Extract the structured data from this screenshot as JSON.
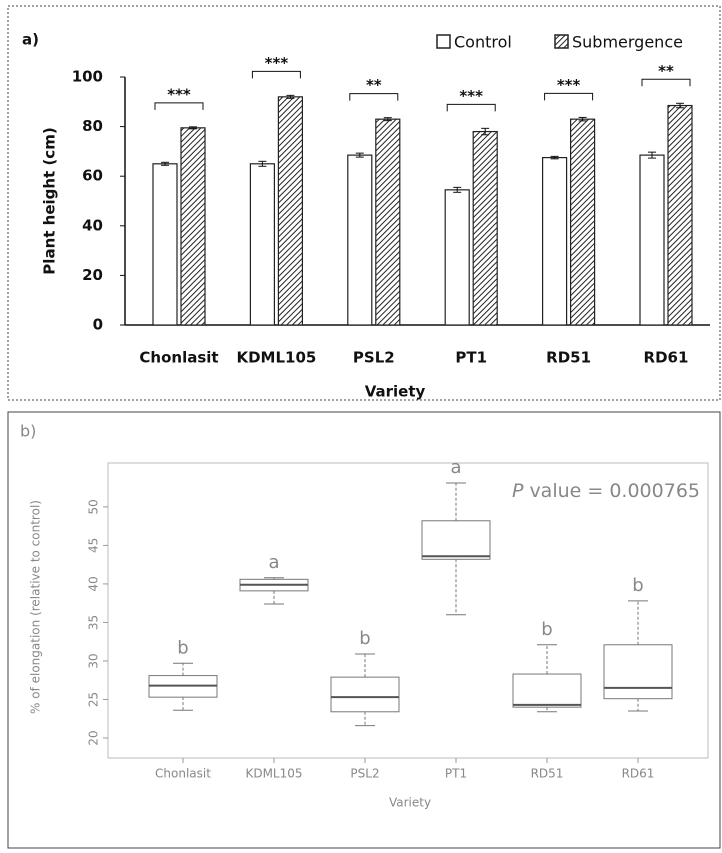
{
  "chart_data": [
    {
      "type": "bar",
      "panel_label": "a)",
      "ylabel": "Plant height (cm)",
      "xlabel": "Variety",
      "categories": [
        "Chonlasit",
        "KDML105",
        "PSL2",
        "PT1",
        "RD51",
        "RD61"
      ],
      "series": [
        {
          "name": "Control",
          "color": "#222222",
          "hatch": false,
          "values": [
            65,
            65,
            68.5,
            54.5,
            67.5,
            68.5
          ],
          "errors": [
            0.6,
            1,
            0.8,
            1,
            0.5,
            1.2
          ]
        },
        {
          "name": "Submergence",
          "color": "#222222",
          "hatch": true,
          "values": [
            79.5,
            92,
            83,
            78,
            83,
            88.5
          ],
          "errors": [
            0.4,
            0.6,
            0.6,
            1.3,
            0.7,
            0.9
          ]
        }
      ],
      "significance": [
        "***",
        "***",
        "**",
        "***",
        "***",
        "**"
      ],
      "ylim": [
        0,
        100
      ],
      "yticks": [
        0,
        20,
        40,
        60,
        80,
        100
      ],
      "grid": false,
      "legend": "top-right"
    },
    {
      "type": "box",
      "panel_label": "b)",
      "ylabel": "% of elongation (relative to control)",
      "xlabel": "Variety",
      "annotation_symbol": "P",
      "annotation": "value = 0.000765",
      "categories": [
        "Chonlasit",
        "KDML105",
        "PSL2",
        "PT1",
        "RD51",
        "RD61"
      ],
      "min": [
        23.6,
        37.4,
        21.6,
        36.0,
        23.4,
        23.5
      ],
      "q1": [
        25.3,
        39.1,
        23.4,
        43.2,
        24.0,
        25.1
      ],
      "median": [
        26.8,
        39.9,
        25.3,
        43.6,
        24.3,
        26.5
      ],
      "q3": [
        28.1,
        40.6,
        27.9,
        48.2,
        28.3,
        32.1
      ],
      "max": [
        29.7,
        40.8,
        30.9,
        53.1,
        32.1,
        37.8
      ],
      "group_labels": [
        "b",
        "a",
        "b",
        "a",
        "b",
        "b"
      ],
      "color": "#777777",
      "median_color": "#555555",
      "ylim": [
        17.4,
        55.7
      ],
      "yticks": [
        20,
        25,
        30,
        35,
        40,
        45,
        50
      ],
      "grid": false
    }
  ]
}
